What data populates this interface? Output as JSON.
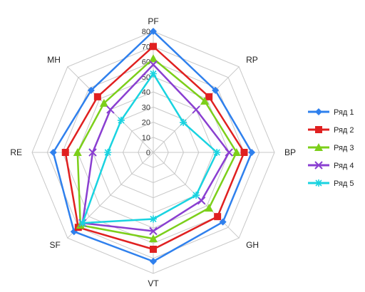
{
  "chart_data": {
    "type": "radar",
    "axes": [
      "PF",
      "RP",
      "BP",
      "GH",
      "VT",
      "SF",
      "RE",
      "MH"
    ],
    "rlim": [
      0,
      80
    ],
    "ticks": [
      "0",
      "10",
      "20",
      "30",
      "40",
      "50",
      "60",
      "70",
      "80"
    ],
    "grid": true,
    "legend": "right",
    "series": [
      {
        "name": "Ряд 1",
        "color": "#2f80ed",
        "marker": "diamond",
        "values": [
          80,
          58,
          65,
          65,
          72,
          74,
          66,
          58
        ]
      },
      {
        "name": "Ряд 2",
        "color": "#e02020",
        "marker": "square",
        "values": [
          70,
          52,
          60,
          60,
          64,
          70,
          58,
          52
        ]
      },
      {
        "name": "Ряд 3",
        "color": "#7ccf1a",
        "marker": "triangle",
        "values": [
          62,
          48,
          55,
          52,
          57,
          68,
          50,
          46
        ]
      },
      {
        "name": "Ряд 4",
        "color": "#8a3fd1",
        "marker": "cross",
        "values": [
          58,
          40,
          50,
          45,
          52,
          66,
          40,
          40
        ]
      },
      {
        "name": "Ряд 5",
        "color": "#19d3e0",
        "marker": "star",
        "values": [
          52,
          28,
          42,
          40,
          44,
          66,
          30,
          30
        ]
      }
    ]
  }
}
